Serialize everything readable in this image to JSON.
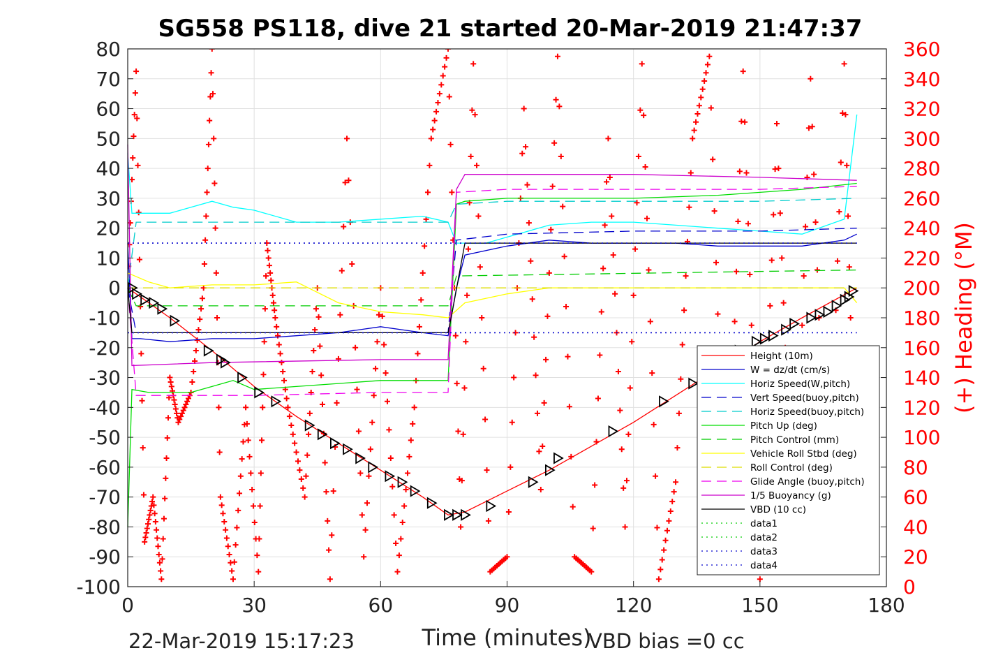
{
  "chart_data": {
    "type": "line",
    "title": "SG558 PS118, dive 21 started 20-Mar-2019 21:47:37",
    "xlabel": "Time (minutes)",
    "ylabel_right": "(+) Heading (°M)",
    "footer_left": "22-Mar-2019 15:17:23",
    "footer_right": "VBD bias =0 cc",
    "xlim": [
      0,
      180
    ],
    "ylim": [
      -100,
      80
    ],
    "y2lim": [
      0,
      360
    ],
    "xticks": [
      0,
      30,
      60,
      90,
      120,
      150,
      180
    ],
    "yticks": [
      80,
      70,
      60,
      50,
      40,
      30,
      20,
      10,
      0,
      -10,
      -20,
      -30,
      -40,
      -50,
      -60,
      -70,
      -80,
      -90,
      -100
    ],
    "y2ticks": [
      360,
      340,
      320,
      300,
      280,
      260,
      240,
      220,
      200,
      180,
      160,
      140,
      120,
      100,
      80,
      60,
      40,
      20,
      0
    ],
    "grid": true,
    "legend_position": "bottom-right",
    "colors": {
      "height": "#ff0000",
      "w": "#0000cc",
      "horiz": "#00ffff",
      "vert_buoy": "#0000cc",
      "horiz_buoy": "#00cccc",
      "pitch": "#00dd00",
      "pitch_ctrl": "#00cc00",
      "roll": "#ffff00",
      "roll_ctrl": "#dddd00",
      "glide": "#ee00ee",
      "buoy": "#cc00cc",
      "vbd": "#000000",
      "heading": "#ff0000"
    },
    "series": [
      {
        "name": "Height (10m)",
        "style": "solid",
        "color": "#ff0000",
        "x": [
          0,
          10,
          20,
          30,
          40,
          50,
          60,
          70,
          76,
          80,
          90,
          100,
          110,
          120,
          130,
          140,
          150,
          160,
          173
        ],
        "y": [
          0,
          -10,
          -21,
          -33,
          -43,
          -52,
          -61,
          -70,
          -76,
          -75,
          -68,
          -61,
          -53,
          -45,
          -36,
          -27,
          -18,
          -10,
          0
        ]
      },
      {
        "name": "W = dz/dt (cm/s)",
        "style": "solid",
        "color": "#0000cc",
        "x": [
          0,
          1,
          3,
          10,
          20,
          30,
          40,
          50,
          60,
          70,
          76,
          78,
          80,
          90,
          100,
          110,
          120,
          130,
          140,
          150,
          160,
          170,
          173
        ],
        "y": [
          15,
          -17,
          -17,
          -18,
          -17,
          -17,
          -16,
          -15,
          -13,
          -15,
          -16,
          0,
          11,
          14,
          16,
          15,
          15,
          15,
          14,
          14,
          14,
          16,
          18
        ]
      },
      {
        "name": "Horiz Speed(W,pitch)",
        "style": "solid",
        "color": "#00ffff",
        "x": [
          0,
          1,
          5,
          10,
          15,
          20,
          25,
          30,
          40,
          50,
          60,
          70,
          76,
          78,
          80,
          85,
          90,
          100,
          110,
          120,
          130,
          140,
          150,
          160,
          170,
          173
        ],
        "y": [
          45,
          25,
          25,
          25,
          27,
          29,
          27,
          26,
          22,
          22,
          23,
          24,
          22,
          15,
          15,
          15,
          17,
          21,
          22,
          22,
          21,
          20,
          19,
          18,
          23,
          58
        ]
      },
      {
        "name": "Vert Speed(buoy,pitch)",
        "style": "dashed",
        "color": "#0000cc",
        "x": [
          0,
          2,
          30,
          60,
          76,
          78,
          90,
          120,
          150,
          173
        ],
        "y": [
          0,
          -15,
          -15,
          -15,
          -15,
          16,
          18,
          19,
          19,
          20
        ]
      },
      {
        "name": "Horiz Speed(buoy,pitch)",
        "style": "dashed",
        "color": "#00cccc",
        "x": [
          0,
          2,
          30,
          60,
          76,
          78,
          90,
          120,
          150,
          173
        ],
        "y": [
          0,
          22,
          22,
          22,
          22,
          28,
          29,
          29,
          29,
          30
        ]
      },
      {
        "name": "Pitch Up (deg)",
        "style": "solid",
        "color": "#00dd00",
        "x": [
          0,
          1,
          5,
          15,
          20,
          25,
          30,
          40,
          50,
          60,
          70,
          76,
          78,
          80,
          90,
          100,
          120,
          140,
          160,
          173
        ],
        "y": [
          -80,
          -34,
          -35,
          -35,
          -33,
          -31,
          -34,
          -33,
          -32,
          -31,
          -31,
          -31,
          28,
          29,
          30,
          30,
          30,
          31,
          33,
          35
        ]
      },
      {
        "name": "Pitch Control (mm)",
        "style": "dashed",
        "color": "#00cc00",
        "x": [
          0,
          2,
          76,
          78,
          173
        ],
        "y": [
          0,
          -6,
          -6,
          4,
          6
        ]
      },
      {
        "name": "Vehicle Roll Stbd (deg)",
        "style": "solid",
        "color": "#ffff00",
        "x": [
          0,
          5,
          10,
          20,
          30,
          40,
          50,
          60,
          70,
          76,
          80,
          90,
          100,
          110,
          120,
          130,
          140,
          150,
          160,
          170,
          173
        ],
        "y": [
          5,
          2,
          0,
          1,
          1,
          2,
          -5,
          -8,
          -9,
          -10,
          -5,
          -2,
          0,
          0,
          0,
          0,
          0,
          0,
          0,
          0,
          -5
        ]
      },
      {
        "name": "Roll Control (deg)",
        "style": "dashed",
        "color": "#dddd00",
        "x": [
          0,
          2,
          76,
          78,
          173
        ],
        "y": [
          0,
          0,
          0,
          0,
          0
        ]
      },
      {
        "name": "Glide Angle (buoy,pitch)",
        "style": "dashed",
        "color": "#ee00ee",
        "x": [
          0,
          2,
          30,
          60,
          76,
          78,
          90,
          120,
          150,
          173
        ],
        "y": [
          0,
          -36,
          -36,
          -35,
          -35,
          32,
          33,
          33,
          33,
          34
        ]
      },
      {
        "name": "1/5 Buoyancy (g)",
        "style": "solid",
        "color": "#cc00cc",
        "x": [
          0,
          1,
          20,
          60,
          76,
          78,
          80,
          120,
          150,
          173
        ],
        "y": [
          48,
          -26,
          -25,
          -24,
          -24,
          33,
          38,
          38,
          37,
          36
        ]
      },
      {
        "name": "VBD (10 cc)",
        "style": "solid",
        "color": "#000000",
        "x": [
          0,
          1,
          76,
          77,
          80,
          120,
          173
        ],
        "y": [
          0,
          -15,
          -15,
          -8,
          15,
          15,
          15
        ]
      },
      {
        "name": "data1",
        "style": "dotted",
        "color": "#00cc00",
        "x": [],
        "y": []
      },
      {
        "name": "data2",
        "style": "dotted",
        "color": "#00cc00",
        "x": [],
        "y": []
      },
      {
        "name": "data3",
        "style": "dotted",
        "color": "#0000cc",
        "x": [
          0,
          173
        ],
        "y": [
          15,
          15
        ]
      },
      {
        "name": "data4",
        "style": "dotted",
        "color": "#0000cc",
        "x": [
          0,
          173
        ],
        "y": [
          -15,
          -15
        ]
      }
    ],
    "heading": {
      "axis": "right",
      "x": [
        0,
        2,
        4,
        6,
        8,
        10,
        12,
        15,
        18,
        20,
        22,
        25,
        28,
        31,
        33,
        35,
        38,
        42,
        45,
        48,
        52,
        56,
        60,
        64,
        68,
        72,
        76,
        79,
        82,
        86,
        90,
        94,
        98,
        102,
        106,
        110,
        114,
        118,
        122,
        126,
        130,
        134,
        138,
        142,
        146,
        150,
        154,
        158,
        162,
        166,
        170,
        173
      ],
      "y": [
        200,
        345,
        30,
        60,
        5,
        140,
        110,
        130,
        200,
        360,
        60,
        5,
        120,
        10,
        230,
        180,
        120,
        60,
        200,
        5,
        300,
        20,
        200,
        10,
        120,
        300,
        360,
        40,
        350,
        10,
        20,
        320,
        65,
        355,
        20,
        10,
        300,
        40,
        350,
        5,
        70,
        300,
        355,
        10,
        345,
        5,
        310,
        10,
        340,
        20,
        350,
        10
      ]
    },
    "markers": {
      "symbol": "triangle-right",
      "x": [
        1,
        2,
        4,
        6,
        8,
        11,
        19,
        22,
        23,
        27,
        31,
        35,
        43,
        46,
        49,
        52,
        55,
        58,
        62,
        65,
        68,
        72,
        76,
        78,
        80,
        86,
        96,
        100,
        102,
        115,
        127,
        134,
        145,
        149,
        151,
        153,
        156,
        158,
        162,
        164,
        166,
        168,
        170,
        171,
        172
      ],
      "y": [
        0,
        -2,
        -4,
        -5,
        -7,
        -11,
        -21,
        -24,
        -25,
        -30,
        -35,
        -38,
        -46,
        -49,
        -52,
        -54,
        -57,
        -60,
        -63,
        -65,
        -68,
        -72,
        -76,
        -76,
        -76,
        -73,
        -65,
        -61,
        -57,
        -48,
        -38,
        -32,
        -21,
        -18,
        -17,
        -16,
        -14,
        -12,
        -10,
        -9,
        -8,
        -6,
        -4,
        -3,
        -1
      ]
    },
    "legend": [
      "Height (10m)",
      "W = dz/dt (cm/s)",
      "Horiz Speed(W,pitch)",
      "Vert Speed(buoy,pitch)",
      "Horiz Speed(buoy,pitch)",
      "Pitch Up (deg)",
      "Pitch Control (mm)",
      "Vehicle Roll Stbd (deg)",
      "Roll Control (deg)",
      "Glide Angle (buoy,pitch)",
      "1/5 Buoyancy (g)",
      "VBD (10 cc)",
      "data1",
      "data2",
      "data3",
      "data4"
    ]
  }
}
